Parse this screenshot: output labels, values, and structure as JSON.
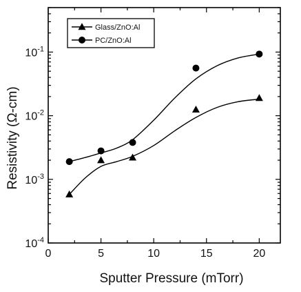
{
  "chart_data": {
    "type": "scatter",
    "title": "",
    "xlabel": "Sputter Pressure  (mTorr)",
    "ylabel": "Resistivity  (Ω-cm)",
    "xlim": [
      0,
      22
    ],
    "ylim": [
      0.0001,
      0.5
    ],
    "y_scale": "log",
    "grid": false,
    "legend_position": "top-left",
    "x_ticks": [
      {
        "value": 0,
        "label": "0"
      },
      {
        "value": 5,
        "label": "5"
      },
      {
        "value": 10,
        "label": "10"
      },
      {
        "value": 15,
        "label": "15"
      },
      {
        "value": 20,
        "label": "20"
      }
    ],
    "y_ticks": [
      {
        "value": 0.0001,
        "base": "10",
        "exp": "-4"
      },
      {
        "value": 0.001,
        "base": "10",
        "exp": "-3"
      },
      {
        "value": 0.01,
        "base": "10",
        "exp": "-2"
      },
      {
        "value": 0.1,
        "base": "10",
        "exp": "-1"
      }
    ],
    "series": [
      {
        "name": "Glass/ZnO:Al",
        "marker": "triangle",
        "color": "#000000",
        "x": [
          2,
          5,
          8,
          14,
          20
        ],
        "y": [
          0.00058,
          0.002,
          0.0022,
          0.0125,
          0.019
        ],
        "fit": {
          "x": [
            2,
            3.5,
            5,
            6.5,
            8,
            10,
            12,
            14,
            16,
            18,
            20
          ],
          "y": [
            0.00058,
            0.00105,
            0.0016,
            0.0019,
            0.0023,
            0.0034,
            0.0058,
            0.0094,
            0.0135,
            0.0166,
            0.0182
          ]
        }
      },
      {
        "name": "PC/ZnO:Al",
        "marker": "circle",
        "color": "#000000",
        "x": [
          2,
          5,
          8,
          14,
          20
        ],
        "y": [
          0.0019,
          0.0028,
          0.0038,
          0.056,
          0.093
        ],
        "fit": {
          "x": [
            2,
            3.5,
            5,
            6.5,
            8,
            10,
            12,
            14,
            16,
            18,
            20
          ],
          "y": [
            0.0019,
            0.0022,
            0.0026,
            0.0031,
            0.0042,
            0.0085,
            0.019,
            0.038,
            0.061,
            0.081,
            0.093
          ]
        }
      }
    ]
  }
}
